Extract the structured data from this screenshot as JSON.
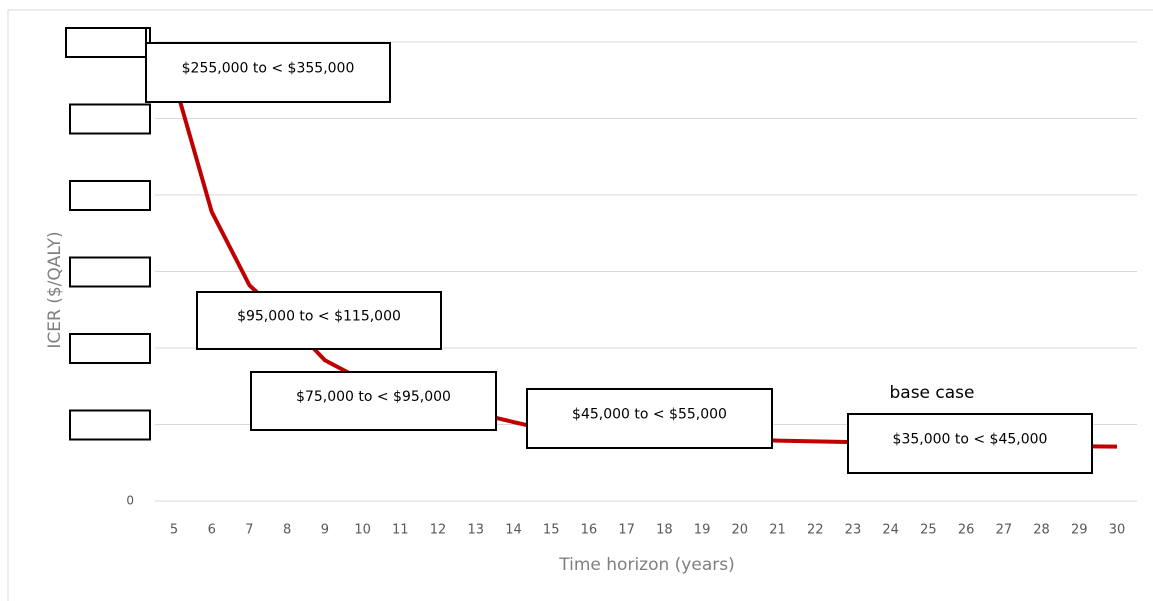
{
  "chart_data": {
    "type": "line",
    "x_label": "Time horizon (years)",
    "y_label": "ICER ($/QALY)",
    "categories": [
      5,
      6,
      7,
      8,
      9,
      10,
      11,
      12,
      13,
      14,
      15,
      16,
      17,
      18,
      19,
      20,
      21,
      22,
      23,
      24,
      25,
      26,
      27,
      28,
      29,
      30
    ],
    "series": [
      {
        "name": "ICER",
        "color": "#c00000",
        "values": [
          275000,
          189000,
          141000,
          118000,
          92000,
          79000,
          69000,
          63000,
          57500,
          51600,
          46000,
          44500,
          43500,
          42500,
          41500,
          40500,
          39500,
          39000,
          38500,
          38000,
          37500,
          37000,
          36500,
          36000,
          35800,
          35500
        ]
      }
    ],
    "ylim": [
      0,
      300000
    ],
    "yticks": [
      0,
      50000,
      100000,
      150000,
      200000,
      250000,
      300000
    ],
    "ytick_labels_redacted": true,
    "grid": true,
    "annotations": [
      "$255,000 to < $355,000",
      "$95,000 to < $115,000",
      "$75,000 to < $95,000",
      "$45,000 to < $55,000",
      "$35,000 to < $45,000",
      "base case"
    ]
  }
}
